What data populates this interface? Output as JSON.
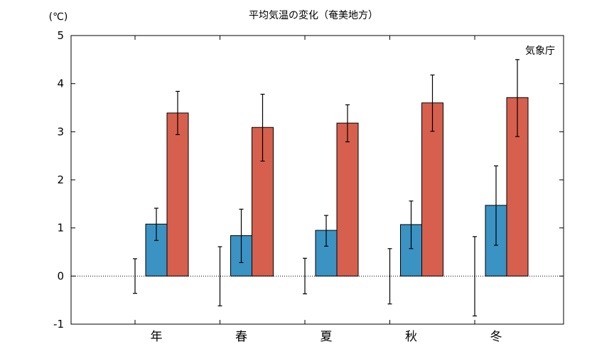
{
  "chart_data": {
    "type": "bar",
    "title": "平均気温の変化（奄美地方）",
    "ylabel": "(℃)",
    "source": "気象庁",
    "ylim": [
      -1,
      5
    ],
    "yticks": [
      "-1",
      "0",
      "1",
      "2",
      "3",
      "4",
      "5"
    ],
    "categories": [
      "年",
      "春",
      "夏",
      "秋",
      "冬"
    ],
    "series": [
      {
        "color": "#ffffff",
        "values": [
          0,
          0,
          0,
          0,
          0
        ],
        "err_low": [
          -0.36,
          -0.62,
          -0.37,
          -0.58,
          -0.83
        ],
        "err_high": [
          0.36,
          0.61,
          0.37,
          0.57,
          0.82
        ]
      },
      {
        "color": "#3a93c3",
        "values": [
          1.08,
          0.84,
          0.95,
          1.07,
          1.47
        ],
        "err_low": [
          0.74,
          0.28,
          0.62,
          0.57,
          0.64
        ],
        "err_high": [
          1.41,
          1.39,
          1.26,
          1.56,
          2.29
        ]
      },
      {
        "color": "#d6604d",
        "values": [
          3.39,
          3.09,
          3.18,
          3.6,
          3.71
        ],
        "err_low": [
          2.94,
          2.39,
          2.79,
          3.01,
          2.9
        ],
        "err_high": [
          3.84,
          3.78,
          3.56,
          4.18,
          4.5
        ]
      }
    ]
  }
}
